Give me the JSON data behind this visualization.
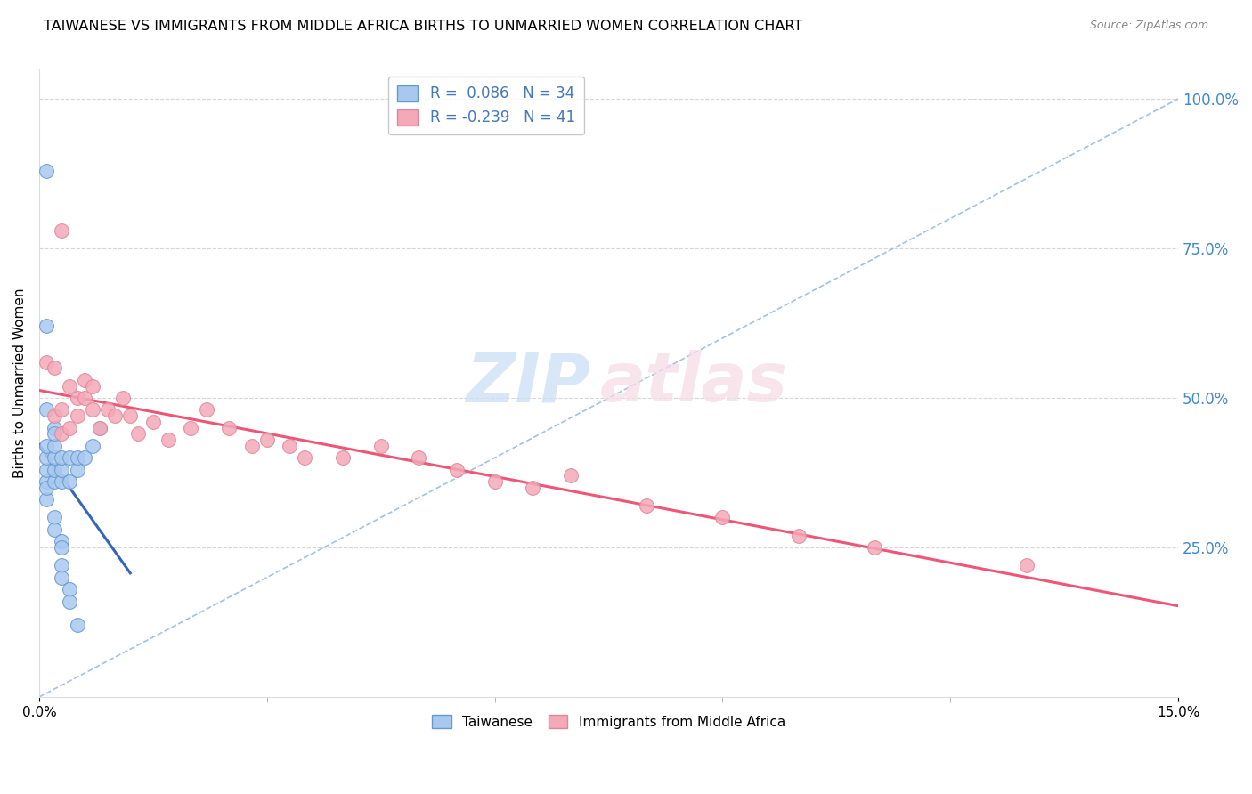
{
  "title": "TAIWANESE VS IMMIGRANTS FROM MIDDLE AFRICA BIRTHS TO UNMARRIED WOMEN CORRELATION CHART",
  "source": "Source: ZipAtlas.com",
  "ylabel": "Births to Unmarried Women",
  "xlim": [
    0.0,
    0.15
  ],
  "ylim": [
    0.0,
    1.05
  ],
  "yaxis_tick_vals": [
    0.25,
    0.5,
    0.75,
    1.0
  ],
  "yaxis_tick_labels": [
    "25.0%",
    "50.0%",
    "75.0%",
    "100.0%"
  ],
  "taiwanese_color": "#a8c8f0",
  "taiwanese_edge": "#6699cc",
  "immigrants_color": "#f5a8b8",
  "immigrants_edge": "#dd8899",
  "trendline_blue": "#3366bb",
  "trendline_pink": "#ee5577",
  "dashed_line_color": "#99bbdd",
  "grid_color": "#cccccc",
  "tw_x": [
    0.001,
    0.001,
    0.001,
    0.001,
    0.001,
    0.001,
    0.002,
    0.002,
    0.002,
    0.002,
    0.003,
    0.003,
    0.003,
    0.004,
    0.004,
    0.005,
    0.005,
    0.006,
    0.007,
    0.008,
    0.001,
    0.001,
    0.001,
    0.002,
    0.002,
    0.002,
    0.002,
    0.003,
    0.003,
    0.003,
    0.003,
    0.004,
    0.004,
    0.005
  ],
  "tw_y": [
    0.36,
    0.38,
    0.4,
    0.42,
    0.33,
    0.35,
    0.36,
    0.38,
    0.4,
    0.42,
    0.36,
    0.38,
    0.4,
    0.36,
    0.4,
    0.38,
    0.4,
    0.4,
    0.42,
    0.45,
    0.88,
    0.62,
    0.48,
    0.45,
    0.44,
    0.3,
    0.28,
    0.26,
    0.25,
    0.22,
    0.2,
    0.18,
    0.16,
    0.12
  ],
  "im_x": [
    0.001,
    0.002,
    0.002,
    0.003,
    0.003,
    0.003,
    0.004,
    0.004,
    0.005,
    0.005,
    0.006,
    0.006,
    0.007,
    0.007,
    0.008,
    0.009,
    0.01,
    0.011,
    0.012,
    0.013,
    0.015,
    0.017,
    0.02,
    0.022,
    0.025,
    0.028,
    0.03,
    0.033,
    0.035,
    0.04,
    0.045,
    0.05,
    0.055,
    0.06,
    0.065,
    0.07,
    0.08,
    0.09,
    0.1,
    0.11,
    0.13
  ],
  "im_y": [
    0.56,
    0.47,
    0.55,
    0.44,
    0.48,
    0.78,
    0.45,
    0.52,
    0.47,
    0.5,
    0.5,
    0.53,
    0.48,
    0.52,
    0.45,
    0.48,
    0.47,
    0.5,
    0.47,
    0.44,
    0.46,
    0.43,
    0.45,
    0.48,
    0.45,
    0.42,
    0.43,
    0.42,
    0.4,
    0.4,
    0.42,
    0.4,
    0.38,
    0.36,
    0.35,
    0.37,
    0.32,
    0.3,
    0.27,
    0.25,
    0.22
  ]
}
